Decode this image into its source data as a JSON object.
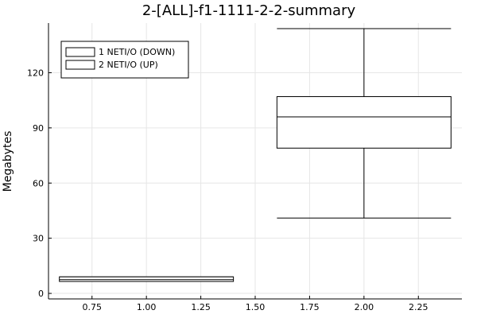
{
  "chart_data": {
    "type": "box",
    "title": "2-[ALL]-f1-1111-2-2-summary",
    "ylabel": "Megabytes",
    "xlabel": "",
    "xlim": [
      0.55,
      2.45
    ],
    "ylim": [
      -3,
      147
    ],
    "xticks": [
      0.75,
      1.0,
      1.25,
      1.5,
      1.75,
      2.0,
      2.25
    ],
    "xtick_labels": [
      "0.75",
      "1.00",
      "1.25",
      "1.50",
      "1.75",
      "2.00",
      "2.25"
    ],
    "yticks": [
      0,
      30,
      60,
      90,
      120
    ],
    "ytick_labels": [
      "0",
      "30",
      "60",
      "90",
      "120"
    ],
    "grid": true,
    "legend_position": "top-left",
    "series": [
      {
        "name": "1 NETI/O (DOWN)",
        "x": 1.0,
        "width": 0.8,
        "whisker_low": 6.5,
        "q1": 6.5,
        "median": 7.5,
        "q3": 9.0,
        "whisker_high": 9.0
      },
      {
        "name": "2 NETI/O (UP)",
        "x": 2.0,
        "width": 0.8,
        "whisker_low": 41,
        "q1": 79,
        "median": 96,
        "q3": 107,
        "whisker_high": 144
      }
    ]
  }
}
